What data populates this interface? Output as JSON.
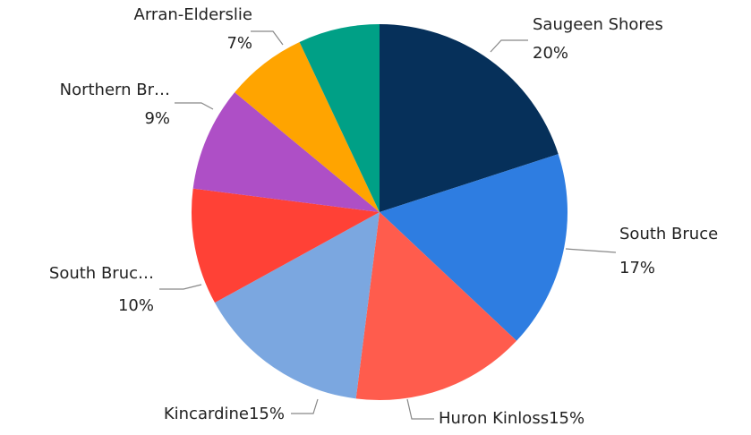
{
  "chart_data": {
    "type": "pie",
    "categories": [
      "Saugeen Shores",
      "South Bruce",
      "Huron Kinloss",
      "Kincardine",
      "South Bruc…",
      "Northern Br…",
      "Arran-Elderslie",
      null
    ],
    "values": [
      20,
      17,
      15,
      15,
      10,
      9,
      7,
      7
    ],
    "value_labels": [
      "20%",
      "17%",
      "15%",
      "15%",
      "10%",
      "9%",
      "7%",
      null
    ],
    "colors": [
      "#06305a",
      "#2e7de1",
      "#ff5c4d",
      "#7ba7e0",
      "#ff4136",
      "#ae4fc6",
      "#ffa400",
      "#00a086"
    ]
  }
}
